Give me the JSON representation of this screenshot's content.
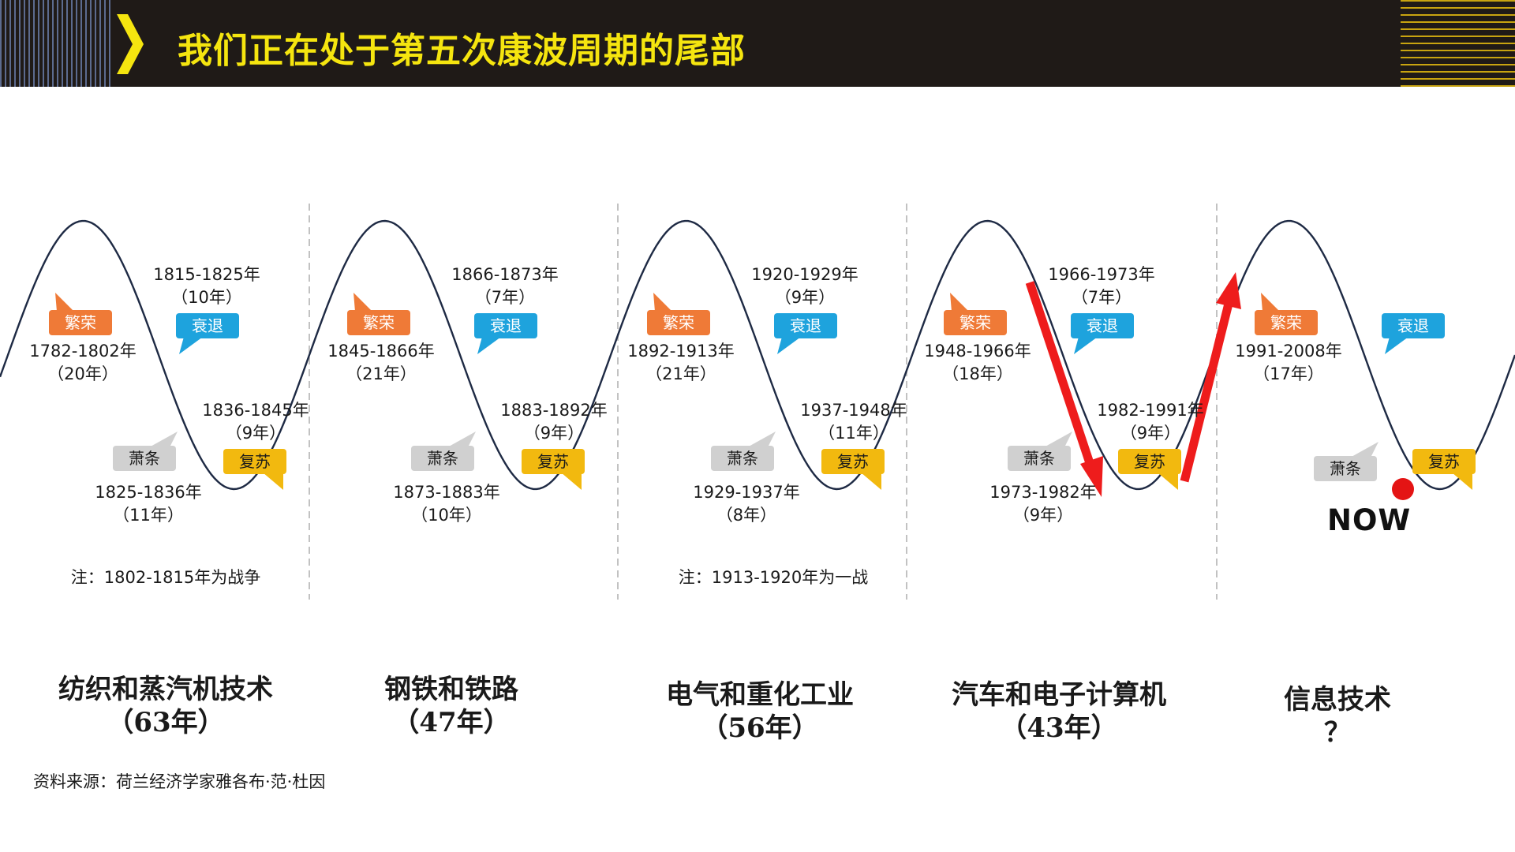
{
  "title": "我们正在处于第五次康波周期的尾部",
  "colors": {
    "header_bg": "#1f1a17",
    "title": "#f5e50f",
    "boom": "#ef7a37",
    "recession": "#1ea3dd",
    "depression": "#d0d0d0",
    "recovery": "#f2b90f",
    "arrow": "#ee1c1c",
    "now_dot": "#e41414",
    "curve": "#1e2a44"
  },
  "phase_labels": {
    "boom": "繁荣",
    "recession": "衰退",
    "depression": "萧条",
    "recovery": "复苏"
  },
  "cycles": [
    {
      "boom": [
        "1782-1802年",
        "（20年）"
      ],
      "recession": [
        "1815-1825年",
        "（10年）"
      ],
      "depression": [
        "1825-1836年",
        "（11年）"
      ],
      "recovery": [
        "1836-1845年",
        "（9年）"
      ],
      "note": "注：1802-1815年为战争",
      "tech": "纺织和蒸汽机技术",
      "duration": "（63年）"
    },
    {
      "boom": [
        "1845-1866年",
        "（21年）"
      ],
      "recession": [
        "1866-1873年",
        "（7年）"
      ],
      "depression": [
        "1873-1883年",
        "（10年）"
      ],
      "recovery": [
        "1883-1892年",
        "（9年）"
      ],
      "note": "",
      "tech": "钢铁和铁路",
      "duration": "（47年）"
    },
    {
      "boom": [
        "1892-1913年",
        "（21年）"
      ],
      "recession": [
        "1920-1929年",
        "（9年）"
      ],
      "depression": [
        "1929-1937年",
        "（8年）"
      ],
      "recovery": [
        "1937-1948年",
        "（11年）"
      ],
      "note": "注：1913-1920年为一战",
      "tech": "电气和重化工业",
      "duration": "（56年）"
    },
    {
      "boom": [
        "1948-1966年",
        "（18年）"
      ],
      "recession": [
        "1966-1973年",
        "（7年）"
      ],
      "depression": [
        "1973-1982年",
        "（9年）"
      ],
      "recovery": [
        "1982-1991年",
        "（9年）"
      ],
      "note": "",
      "tech": "汽车和电子计算机",
      "duration": "（43年）"
    },
    {
      "boom": [
        "1991-2008年",
        "（17年）"
      ],
      "recession": [],
      "depression": [],
      "recovery": [],
      "note": "",
      "tech": "信息技术",
      "duration": "？"
    }
  ],
  "now_label": "NOW",
  "source": "资料来源：荷兰经济学家雅各布·范·杜因"
}
